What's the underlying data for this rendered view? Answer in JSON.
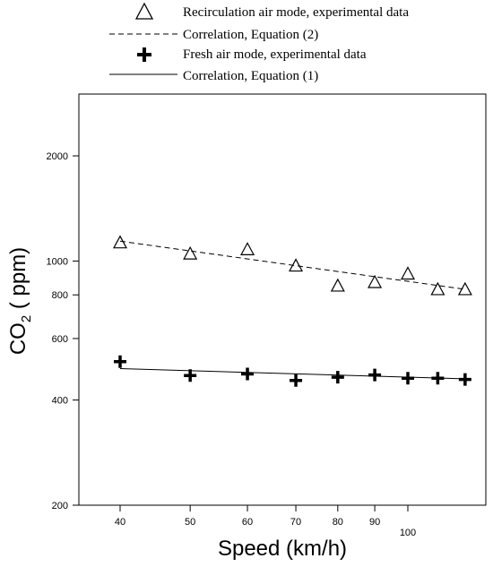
{
  "chart_data": {
    "type": "scatter",
    "xlabel": "Speed (km/h)",
    "ylabel_main": "CO",
    "ylabel_sub": "2",
    "ylabel_rest": " ( ppm)",
    "x_scale": "log",
    "y_scale": "log",
    "xlim": [
      35,
      120
    ],
    "ylim": [
      200,
      3000
    ],
    "x_ticks": [
      40,
      50,
      60,
      70,
      80,
      90,
      100
    ],
    "x_tick_labels": [
      "40",
      "50",
      "60",
      "70",
      "80",
      "90",
      "100"
    ],
    "y_ticks": [
      200,
      400,
      600,
      800,
      1000,
      2000
    ],
    "y_tick_labels": [
      "200",
      "400",
      "600",
      "800",
      "1000",
      "2000"
    ],
    "grid": false,
    "legend_position": "top",
    "series": [
      {
        "name": "Recirculation air mode, experimental data",
        "marker": "triangle-open",
        "x": [
          40,
          50,
          60,
          70,
          80,
          90,
          100,
          110,
          120
        ],
        "y": [
          1130,
          1050,
          1080,
          970,
          850,
          870,
          920,
          830,
          830
        ]
      },
      {
        "name": "Correlation, Equation (2)",
        "line": "dashed",
        "x": [
          40,
          120
        ],
        "y": [
          1140,
          830
        ]
      },
      {
        "name": "Fresh air mode, experimental data",
        "marker": "plus-bold",
        "x": [
          40,
          50,
          60,
          70,
          80,
          90,
          100,
          110,
          120
        ],
        "y": [
          515,
          470,
          475,
          455,
          465,
          472,
          462,
          462,
          458
        ]
      },
      {
        "name": "Correlation, Equation (1)",
        "line": "solid",
        "x": [
          40,
          120
        ],
        "y": [
          492,
          460
        ]
      }
    ]
  }
}
